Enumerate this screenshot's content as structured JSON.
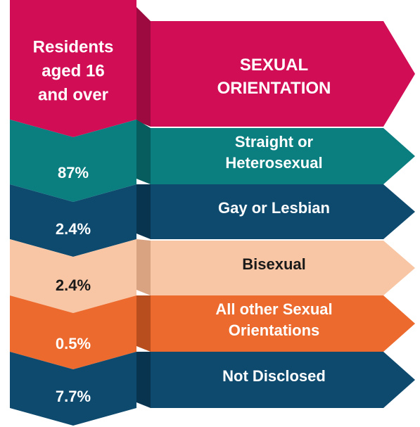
{
  "header": {
    "label": [
      "Residents",
      "aged 16",
      "and over"
    ],
    "title": [
      "SEXUAL",
      "ORIENTATION"
    ]
  },
  "rows": [
    {
      "label": [
        "Straight or",
        "Heterosexual"
      ],
      "value": "87%"
    },
    {
      "label": [
        "Gay or Lesbian"
      ],
      "value": "2.4%"
    },
    {
      "label": [
        "Bisexual"
      ],
      "value": "2.4%"
    },
    {
      "label": [
        "All other Sexual",
        "Orientations"
      ],
      "value": "0.5%"
    },
    {
      "label": [
        "Not Disclosed"
      ],
      "value": "7.7%"
    }
  ]
}
